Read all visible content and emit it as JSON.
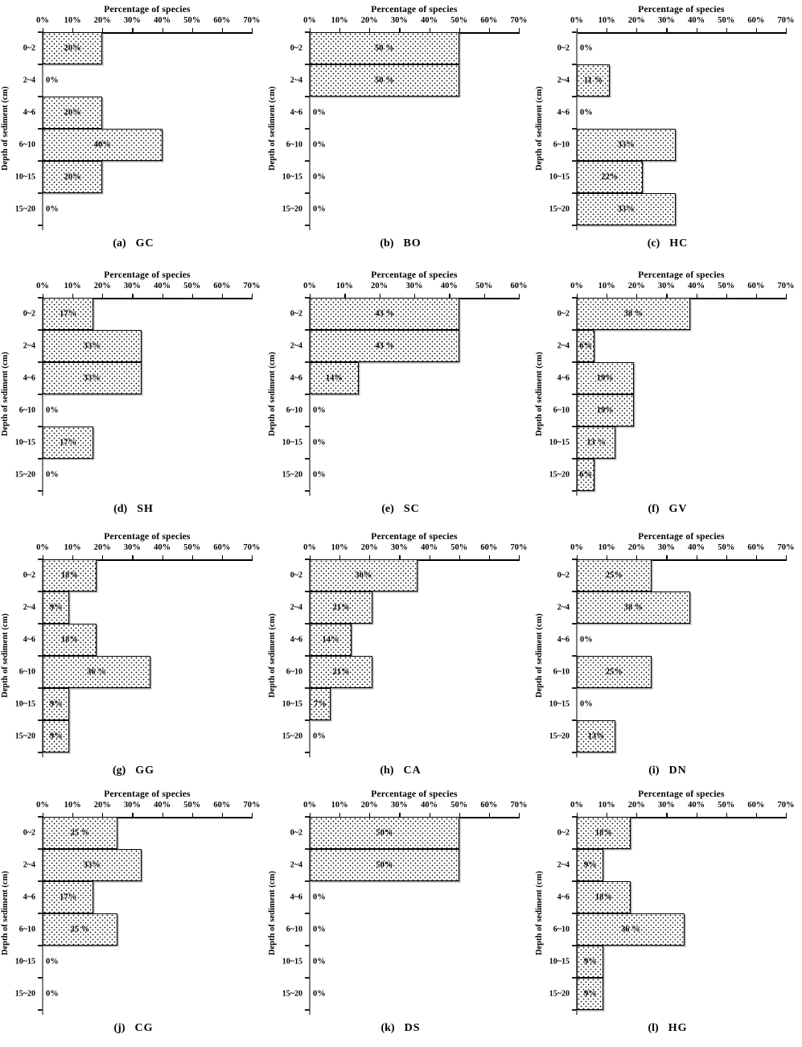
{
  "figure": {
    "layout": "4 rows x 3 columns of panels",
    "style": {
      "background": "#ffffff",
      "text_color": "#000000",
      "bar_fill": "white with black dot pattern",
      "bar_border": "#000000",
      "bar_shadow": "#a8a8a8",
      "x_axis_color": "#000000",
      "y_axis_color": "#7f7f7f",
      "axis_position": "top",
      "grid": false
    }
  },
  "chart_data": [
    {
      "panel": "a",
      "caption_prefix": "(a)",
      "caption_code": "GC",
      "caption": "(a) GC",
      "type": "bar",
      "orientation": "horizontal",
      "title": "Percentage of species",
      "ylabel": "Depth of sediment (cm)",
      "categories": [
        "0~2",
        "2~4",
        "4~6",
        "6~10",
        "10~15",
        "15~20"
      ],
      "values": [
        20,
        0,
        20,
        40,
        20,
        0
      ],
      "bar_labels": [
        "20%",
        "0%",
        "20%",
        "40%",
        "20%",
        "0%"
      ],
      "xlim": [
        0,
        70
      ],
      "xtick_labels": [
        "0%",
        "10%",
        "20%",
        "30%",
        "40%",
        "50%",
        "60%",
        "70%"
      ]
    },
    {
      "panel": "b",
      "caption_prefix": "(b)",
      "caption_code": "BO",
      "caption": "(b) BO",
      "type": "bar",
      "orientation": "horizontal",
      "title": "Percentage of species",
      "ylabel": "Depth of sediment (cm)",
      "categories": [
        "0~2",
        "2~4",
        "4~6",
        "6~10",
        "10~15",
        "15~20"
      ],
      "values": [
        50,
        50,
        0,
        0,
        0,
        0
      ],
      "bar_labels": [
        "50 %",
        "50 %",
        "0%",
        "0%",
        "0%",
        "0%"
      ],
      "xlim": [
        0,
        70
      ],
      "xtick_labels": [
        "0%",
        "10%",
        "20%",
        "30%",
        "40%",
        "50%",
        "60%",
        "70%"
      ]
    },
    {
      "panel": "c",
      "caption_prefix": "(c)",
      "caption_code": "HC",
      "caption": "(c) HC",
      "type": "bar",
      "orientation": "horizontal",
      "title": "Percentage of species",
      "ylabel": "Depth of sediment (cm)",
      "categories": [
        "0~2",
        "2~4",
        "4~6",
        "6~10",
        "10~15",
        "15~20"
      ],
      "values": [
        0,
        11,
        0,
        33,
        22,
        33
      ],
      "bar_labels": [
        "0%",
        "11 %",
        "0%",
        "33%",
        "22%",
        "33%"
      ],
      "xlim": [
        0,
        70
      ],
      "xtick_labels": [
        "0%",
        "10%",
        "20%",
        "30%",
        "40%",
        "50%",
        "60%",
        "70%"
      ]
    },
    {
      "panel": "d",
      "caption_prefix": "(d)",
      "caption_code": "SH",
      "caption": "(d) SH",
      "type": "bar",
      "orientation": "horizontal",
      "title": "Percentage of species",
      "ylabel": "Depth of sediment (cm)",
      "categories": [
        "0~2",
        "2~4",
        "4~6",
        "6~10",
        "10~15",
        "15~20"
      ],
      "values": [
        17,
        33,
        33,
        0,
        17,
        0
      ],
      "bar_labels": [
        "17%",
        "33%",
        "33%",
        "0%",
        "17%",
        "0%"
      ],
      "xlim": [
        0,
        70
      ],
      "xtick_labels": [
        "0%",
        "10%",
        "20%",
        "30%",
        "40%",
        "50%",
        "60%",
        "70%"
      ]
    },
    {
      "panel": "e",
      "caption_prefix": "(e)",
      "caption_code": "SC",
      "caption": "(e) SC",
      "type": "bar",
      "orientation": "horizontal",
      "title": "Percentage of species",
      "ylabel": "Depth of sediment (cm)",
      "categories": [
        "0~2",
        "2~4",
        "4~6",
        "6~10",
        "10~15",
        "15~20"
      ],
      "values": [
        43,
        43,
        14,
        0,
        0,
        0
      ],
      "bar_labels": [
        "43 %",
        "43 %",
        "14%",
        "0%",
        "0%",
        "0%"
      ],
      "xlim": [
        0,
        60
      ],
      "xtick_labels": [
        "0%",
        "10%",
        "20%",
        "30%",
        "40%",
        "50%",
        "60%"
      ]
    },
    {
      "panel": "f",
      "caption_prefix": "(f)",
      "caption_code": "GV",
      "caption": "(f) GV",
      "type": "bar",
      "orientation": "horizontal",
      "title": "Percentage of species",
      "ylabel": "Depth of sediment (cm)",
      "categories": [
        "0~2",
        "2~4",
        "4~6",
        "6~10",
        "10~15",
        "15~20"
      ],
      "values": [
        38,
        6,
        19,
        19,
        13,
        6
      ],
      "bar_labels": [
        "38 %",
        "6%",
        "19%",
        "19%",
        "13 %",
        "6%"
      ],
      "xlim": [
        0,
        70
      ],
      "xtick_labels": [
        "0%",
        "10%",
        "20%",
        "30%",
        "40%",
        "50%",
        "60%",
        "70%"
      ]
    },
    {
      "panel": "g",
      "caption_prefix": "(g)",
      "caption_code": "GG",
      "caption": "(g) GG",
      "type": "bar",
      "orientation": "horizontal",
      "title": "Percentage of species",
      "ylabel": "Depth of sediment (cm)",
      "categories": [
        "0~2",
        "2~4",
        "4~6",
        "6~10",
        "10~15",
        "15~20"
      ],
      "values": [
        18,
        9,
        18,
        36,
        9,
        9
      ],
      "bar_labels": [
        "18%",
        "9%",
        "18%",
        "36 %",
        "9%",
        "9%"
      ],
      "xlim": [
        0,
        70
      ],
      "xtick_labels": [
        "0%",
        "10%",
        "20%",
        "30%",
        "40%",
        "50%",
        "60%",
        "70%"
      ]
    },
    {
      "panel": "h",
      "caption_prefix": "(h)",
      "caption_code": "CA",
      "caption": "(h) CA",
      "type": "bar",
      "orientation": "horizontal",
      "title": "Percentage of species",
      "ylabel": "Depth of sediment (cm)",
      "categories": [
        "0~2",
        "2~4",
        "4~6",
        "6~10",
        "10~15",
        "15~20"
      ],
      "values": [
        36,
        21,
        14,
        21,
        7,
        0
      ],
      "bar_labels": [
        "36%",
        "21%",
        "14%",
        "21%",
        "7%",
        "0%"
      ],
      "xlim": [
        0,
        70
      ],
      "xtick_labels": [
        "0%",
        "10%",
        "20%",
        "30%",
        "40%",
        "50%",
        "60%",
        "70%"
      ]
    },
    {
      "panel": "i",
      "caption_prefix": "(i)",
      "caption_code": "DN",
      "caption": "(i) DN",
      "type": "bar",
      "orientation": "horizontal",
      "title": "Percentage of species",
      "ylabel": "Depth of sediment (cm)",
      "categories": [
        "0~2",
        "2~4",
        "4~6",
        "6~10",
        "10~15",
        "15~20"
      ],
      "values": [
        25,
        38,
        0,
        25,
        0,
        13
      ],
      "bar_labels": [
        "25%",
        "38 %",
        "0%",
        "25%",
        "0%",
        "13%"
      ],
      "xlim": [
        0,
        70
      ],
      "xtick_labels": [
        "0%",
        "10%",
        "20%",
        "30%",
        "40%",
        "50%",
        "60%",
        "70%"
      ]
    },
    {
      "panel": "j",
      "caption_prefix": "(j)",
      "caption_code": "CG",
      "caption": "(j) CG",
      "type": "bar",
      "orientation": "horizontal",
      "title": "Percentage of species",
      "ylabel": "Depth of sediment (cm)",
      "categories": [
        "0~2",
        "2~4",
        "4~6",
        "6~10",
        "10~15",
        "15~20"
      ],
      "values": [
        25,
        33,
        17,
        25,
        0,
        0
      ],
      "bar_labels": [
        "25 %",
        "33%",
        "17%",
        "25 %",
        "0%",
        "0%"
      ],
      "xlim": [
        0,
        70
      ],
      "xtick_labels": [
        "0%",
        "10%",
        "20%",
        "30%",
        "40%",
        "50%",
        "60%",
        "70%"
      ]
    },
    {
      "panel": "k",
      "caption_prefix": "(k)",
      "caption_code": "DS",
      "caption": "(k) DS",
      "type": "bar",
      "orientation": "horizontal",
      "title": "Percentage of species",
      "ylabel": "Depth of sediment (cm)",
      "categories": [
        "0~2",
        "2~4",
        "4~6",
        "6~10",
        "10~15",
        "15~20"
      ],
      "values": [
        50,
        50,
        0,
        0,
        0,
        0
      ],
      "bar_labels": [
        "50%",
        "50%",
        "0%",
        "0%",
        "0%",
        "0%"
      ],
      "xlim": [
        0,
        70
      ],
      "xtick_labels": [
        "0%",
        "10%",
        "20%",
        "30%",
        "40%",
        "50%",
        "60%",
        "70%"
      ]
    },
    {
      "panel": "l",
      "caption_prefix": "(l)",
      "caption_code": "HG",
      "caption": "(l) HG",
      "type": "bar",
      "orientation": "horizontal",
      "title": "Percentage of species",
      "ylabel": "Depth of sediment (cm)",
      "categories": [
        "0~2",
        "2~4",
        "4~6",
        "6~10",
        "10~15",
        "15~20"
      ],
      "values": [
        18,
        9,
        18,
        36,
        9,
        9
      ],
      "bar_labels": [
        "18%",
        "9%",
        "18%",
        "36 %",
        "9%",
        "9%"
      ],
      "xlim": [
        0,
        70
      ],
      "xtick_labels": [
        "0%",
        "10%",
        "20%",
        "30%",
        "40%",
        "50%",
        "60%",
        "70%"
      ]
    }
  ]
}
